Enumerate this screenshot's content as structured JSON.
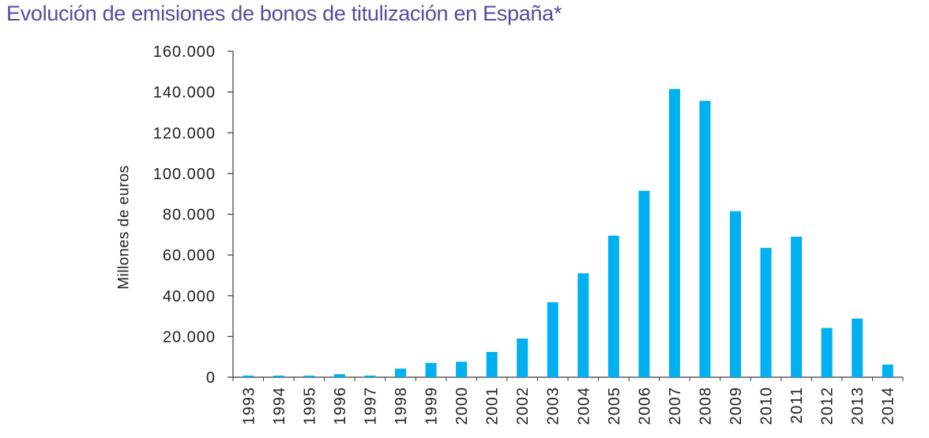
{
  "chart_data": {
    "type": "bar",
    "title": "Evolución de emisiones de bonos de titulización en España*",
    "xlabel": "",
    "ylabel": "Millones de euros",
    "categories": [
      "1993",
      "1994",
      "1995",
      "1996",
      "1997",
      "1998",
      "1999",
      "2000",
      "2001",
      "2002",
      "2003",
      "2004",
      "2005",
      "2006",
      "2007",
      "2008",
      "2009",
      "2010",
      "2011",
      "2012",
      "2013",
      "2014"
    ],
    "values": [
      800,
      800,
      800,
      1500,
      800,
      4200,
      7000,
      7600,
      12400,
      19000,
      36800,
      51000,
      69500,
      91500,
      141500,
      135700,
      81500,
      63500,
      69000,
      24200,
      28800,
      6200
    ],
    "ylim": [
      0,
      160000
    ],
    "yticks": [
      0,
      20000,
      40000,
      60000,
      80000,
      100000,
      120000,
      140000,
      160000
    ],
    "ytick_labels": [
      "0",
      "20.000",
      "40.000",
      "60.000",
      "80.000",
      "100.000",
      "120.000",
      "140.000",
      "160.000"
    ],
    "grid": false
  },
  "colors": {
    "title": "#5a4a9c",
    "bar": "#00b0f0",
    "axis": "#3a3a3a"
  }
}
